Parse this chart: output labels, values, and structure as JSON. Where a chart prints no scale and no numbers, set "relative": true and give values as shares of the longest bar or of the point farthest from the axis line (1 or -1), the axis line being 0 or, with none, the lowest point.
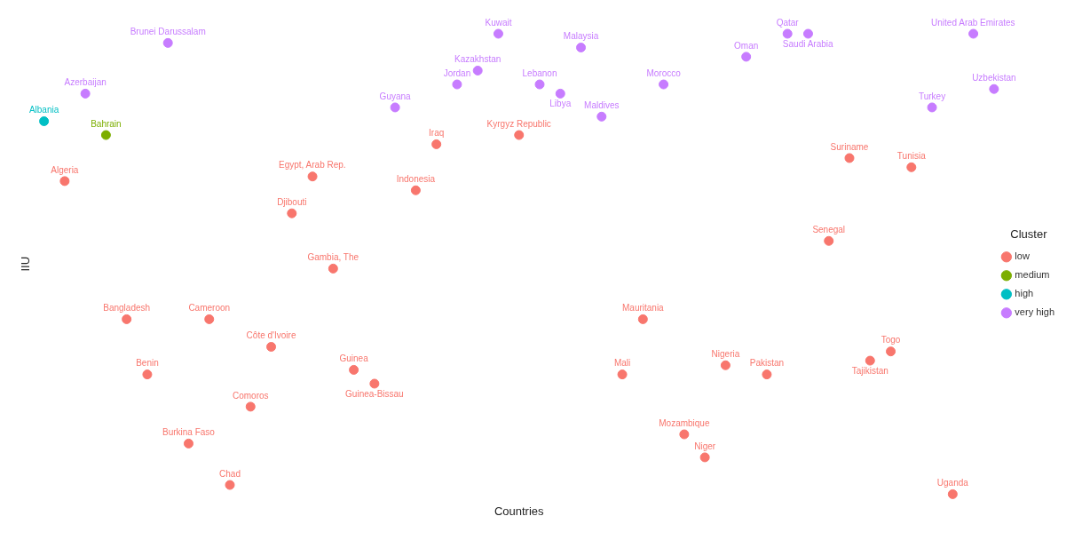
{
  "chart_data": {
    "type": "scatter",
    "relative": true,
    "xlabel": "Countries",
    "ylabel": "IIU",
    "legend_title": "Cluster",
    "legend": "right",
    "grid": false,
    "marker": "circle",
    "tick_labels": false,
    "categories": [
      "Albania",
      "Algeria",
      "Azerbaijan",
      "Bahrain",
      "Bangladesh",
      "Benin",
      "Brunei Darussalam",
      "Burkina Faso",
      "Cameroon",
      "Chad",
      "Comoros",
      "Côte d'Ivoire",
      "Djibouti",
      "Egypt, Arab Rep.",
      "Gambia, The",
      "Guinea",
      "Guinea-Bissau",
      "Guyana",
      "Indonesia",
      "Iraq",
      "Jordan",
      "Kazakhstan",
      "Kuwait",
      "Kyrgyz Republic",
      "Lebanon",
      "Libya",
      "Malaysia",
      "Maldives",
      "Mali",
      "Mauritania",
      "Morocco",
      "Mozambique",
      "Niger",
      "Nigeria",
      "Oman",
      "Pakistan",
      "Qatar",
      "Saudi Arabia",
      "Senegal",
      "Suriname",
      "Tajikistan",
      "Togo",
      "Tunisia",
      "Turkey",
      "Uganda",
      "United Arab Emirates",
      "Uzbekistan"
    ],
    "series": [
      {
        "name": "low",
        "color": "#f8766d",
        "values": [
          null,
          0.68,
          null,
          null,
          0.38,
          0.26,
          null,
          0.11,
          0.38,
          0.02,
          0.19,
          0.32,
          0.61,
          0.69,
          0.49,
          0.27,
          0.24,
          null,
          0.66,
          0.76,
          null,
          null,
          null,
          0.78,
          null,
          null,
          null,
          null,
          0.26,
          0.38,
          null,
          0.13,
          0.08,
          0.28,
          null,
          0.26,
          null,
          null,
          0.55,
          0.73,
          0.29,
          0.31,
          0.71,
          null,
          0,
          null,
          null
        ]
      },
      {
        "name": "medium",
        "color": "#7cae00",
        "values": [
          null,
          null,
          null,
          0.78,
          null,
          null,
          null,
          null,
          null,
          null,
          null,
          null,
          null,
          null,
          null,
          null,
          null,
          null,
          null,
          null,
          null,
          null,
          null,
          null,
          null,
          null,
          null,
          null,
          null,
          null,
          null,
          null,
          null,
          null,
          null,
          null,
          null,
          null,
          null,
          null,
          null,
          null,
          null,
          null,
          null,
          null,
          null
        ]
      },
      {
        "name": "high",
        "color": "#00bfc4",
        "values": [
          0.81,
          null,
          null,
          null,
          null,
          null,
          null,
          null,
          null,
          null,
          null,
          null,
          null,
          null,
          null,
          null,
          null,
          null,
          null,
          null,
          null,
          null,
          null,
          null,
          null,
          null,
          null,
          null,
          null,
          null,
          null,
          null,
          null,
          null,
          null,
          null,
          null,
          null,
          null,
          null,
          null,
          null,
          null,
          null,
          null,
          null,
          null
        ]
      },
      {
        "name": "very high",
        "color": "#c77cff",
        "values": [
          null,
          null,
          0.87,
          null,
          null,
          null,
          0.98,
          null,
          null,
          null,
          null,
          null,
          null,
          null,
          null,
          null,
          null,
          0.84,
          null,
          null,
          0.89,
          0.92,
          1,
          null,
          0.89,
          0.87,
          0.97,
          0.82,
          null,
          null,
          0.89,
          null,
          null,
          null,
          0.95,
          null,
          1,
          1,
          null,
          null,
          null,
          null,
          null,
          0.84,
          null,
          1,
          0.88
        ]
      }
    ]
  }
}
